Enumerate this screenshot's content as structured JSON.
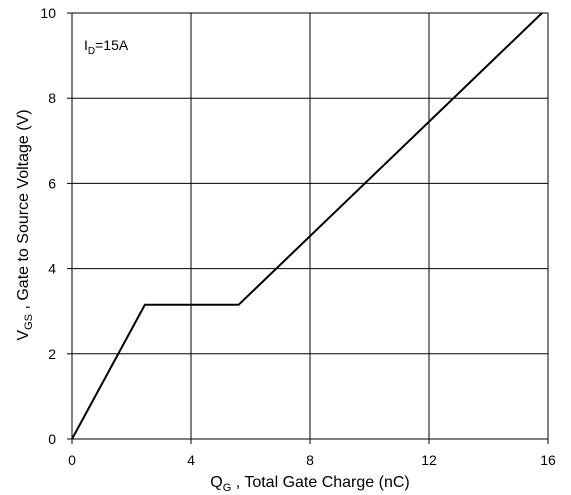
{
  "chart_data": {
    "type": "line",
    "series": [
      {
        "x": [
          0,
          2.45,
          5.6,
          15.8
        ],
        "y": [
          0,
          3.15,
          3.15,
          10.0
        ]
      }
    ],
    "xlim": [
      0,
      16
    ],
    "ylim": [
      0,
      10
    ],
    "x_ticks": [
      0,
      4,
      8,
      12,
      16
    ],
    "y_ticks": [
      0,
      2,
      4,
      6,
      8,
      10
    ],
    "x_tick_labels": [
      "0",
      "4",
      "8",
      "12",
      "16"
    ],
    "y_tick_labels": [
      "0",
      "2",
      "4",
      "6",
      "8",
      "10"
    ],
    "xlabel": {
      "symbol": "Q",
      "subscript": "G",
      "text": " , Total Gate Charge (nC)"
    },
    "ylabel": {
      "symbol": "V",
      "subscript": "GS",
      "text": " , Gate to Source Voltage (V)"
    },
    "annotation": {
      "symbol": "I",
      "subscript": "D",
      "text": "=15A"
    },
    "grid": true,
    "line_color": "#000000",
    "grid_color": "#000000",
    "background_color": "#ffffff"
  }
}
